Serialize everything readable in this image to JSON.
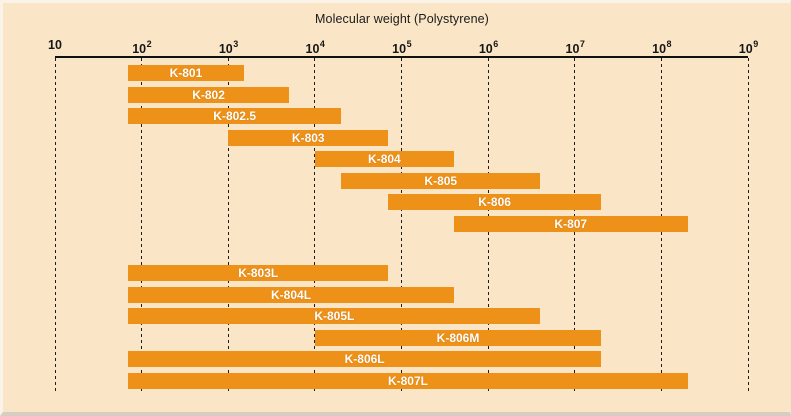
{
  "chart_data": {
    "type": "bar",
    "subtype": "horizontal-range-bars",
    "title": "Molecular weight (Polystyrene)",
    "x_axis": {
      "scale": "log10",
      "min": 10,
      "max": 1000000000,
      "ticks": [
        {
          "base": "10",
          "exp": "",
          "value": 10
        },
        {
          "base": "10",
          "exp": "2",
          "value": 100
        },
        {
          "base": "10",
          "exp": "3",
          "value": 1000
        },
        {
          "base": "10",
          "exp": "4",
          "value": 10000
        },
        {
          "base": "10",
          "exp": "5",
          "value": 100000
        },
        {
          "base": "10",
          "exp": "6",
          "value": 1000000
        },
        {
          "base": "10",
          "exp": "7",
          "value": 10000000
        },
        {
          "base": "10",
          "exp": "8",
          "value": 100000000
        },
        {
          "base": "10",
          "exp": "9",
          "value": 1000000000
        }
      ]
    },
    "grid": "dotted-vertical-per-decade",
    "legend": "none",
    "series": [
      {
        "label": "K-801",
        "group": "upper",
        "range_min": 70,
        "range_max": 1500
      },
      {
        "label": "K-802",
        "group": "upper",
        "range_min": 70,
        "range_max": 5000
      },
      {
        "label": "K-802.5",
        "group": "upper",
        "range_min": 70,
        "range_max": 20000
      },
      {
        "label": "K-803",
        "group": "upper",
        "range_min": 1000,
        "range_max": 70000
      },
      {
        "label": "K-804",
        "group": "upper",
        "range_min": 10000,
        "range_max": 400000
      },
      {
        "label": "K-805",
        "group": "upper",
        "range_min": 20000,
        "range_max": 4000000
      },
      {
        "label": "K-806",
        "group": "upper",
        "range_min": 70000,
        "range_max": 20000000
      },
      {
        "label": "K-807",
        "group": "upper",
        "range_min": 400000,
        "range_max": 200000000
      },
      {
        "label": "K-803L",
        "group": "lower",
        "range_min": 70,
        "range_max": 70000
      },
      {
        "label": "K-804L",
        "group": "lower",
        "range_min": 70,
        "range_max": 400000
      },
      {
        "label": "K-805L",
        "group": "lower",
        "range_min": 70,
        "range_max": 4000000
      },
      {
        "label": "K-806M",
        "group": "lower",
        "range_min": 10000,
        "range_max": 20000000
      },
      {
        "label": "K-806L",
        "group": "lower",
        "range_min": 70,
        "range_max": 20000000
      },
      {
        "label": "K-807L",
        "group": "lower",
        "range_min": 70,
        "range_max": 200000000
      }
    ],
    "colors": {
      "background": "#fae5c6",
      "bar": "#ee9118",
      "bar_label_text": "#ffffff",
      "axis_line": "#111111",
      "gridline": "#1c1c1c",
      "text": "#1b1b1b"
    }
  }
}
